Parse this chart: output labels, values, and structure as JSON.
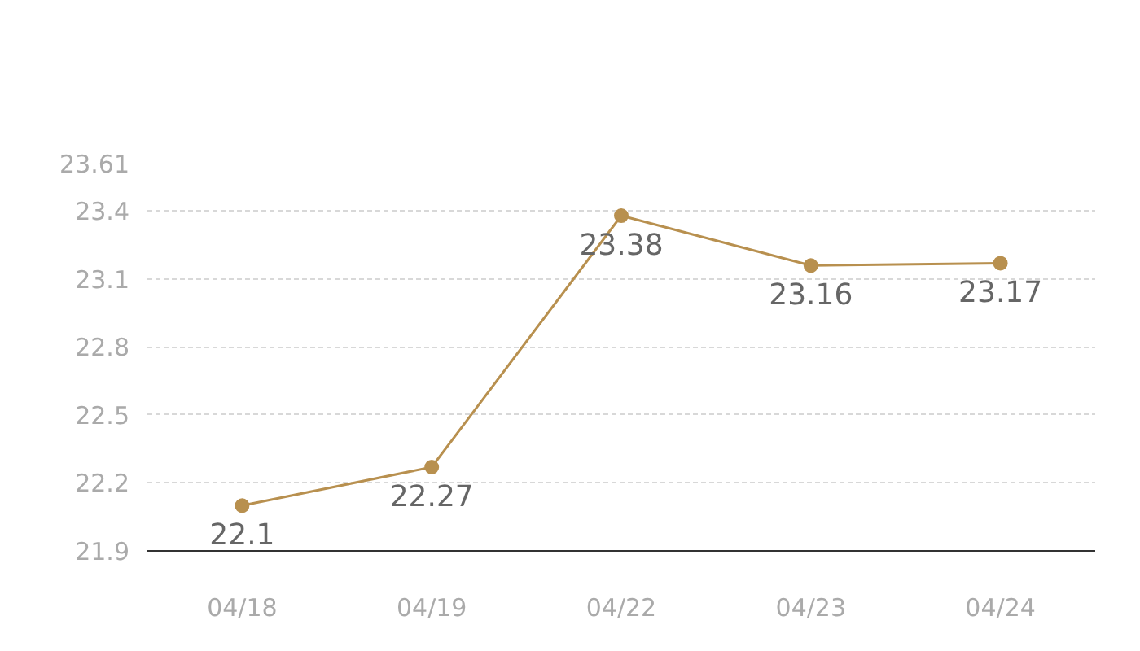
{
  "chart_data": {
    "type": "line",
    "categories": [
      "04/18",
      "04/19",
      "04/22",
      "04/23",
      "04/24"
    ],
    "series": [
      {
        "color": "#b8904f",
        "values": [
          22.1,
          22.27,
          23.38,
          23.16,
          23.17
        ]
      }
    ],
    "ylim": [
      21.9,
      23.61
    ],
    "yticks": [
      21.9,
      22.2,
      22.5,
      22.8,
      23.1,
      23.4,
      23.61
    ],
    "grid": "y",
    "marker": "circle",
    "line_style": "solid",
    "data_labels": true
  }
}
